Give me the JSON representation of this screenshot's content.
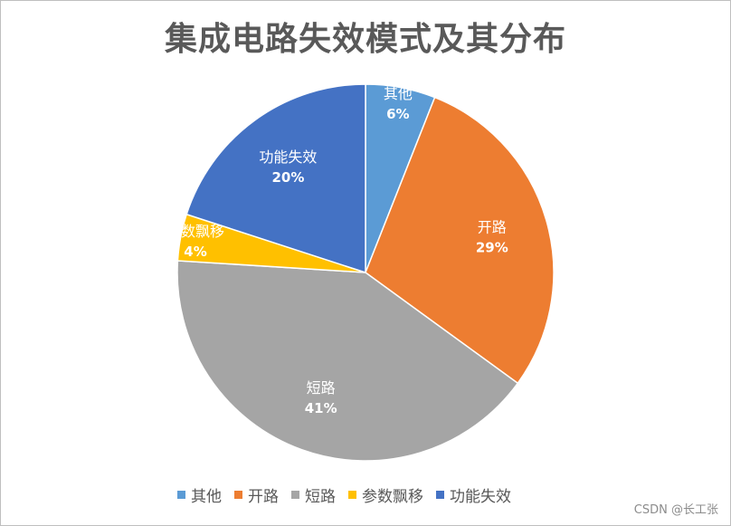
{
  "chart_data": {
    "type": "pie",
    "title": "集成电路失效模式及其分布",
    "unit": "%",
    "slices": [
      {
        "label": "其他",
        "value": 6,
        "color": "#5b9bd5"
      },
      {
        "label": "开路",
        "value": 29,
        "color": "#ed7d31"
      },
      {
        "label": "短路",
        "value": 41,
        "color": "#a5a5a5"
      },
      {
        "label": "参数飘移",
        "value": 4,
        "color": "#ffc000"
      },
      {
        "label": "功能失效",
        "value": 20,
        "color": "#4472c4"
      }
    ],
    "legend_position": "bottom",
    "data_labels": "inside, category name and percentage",
    "start_angle": "12 o'clock, clockwise"
  },
  "watermark": "CSDN @长工张"
}
